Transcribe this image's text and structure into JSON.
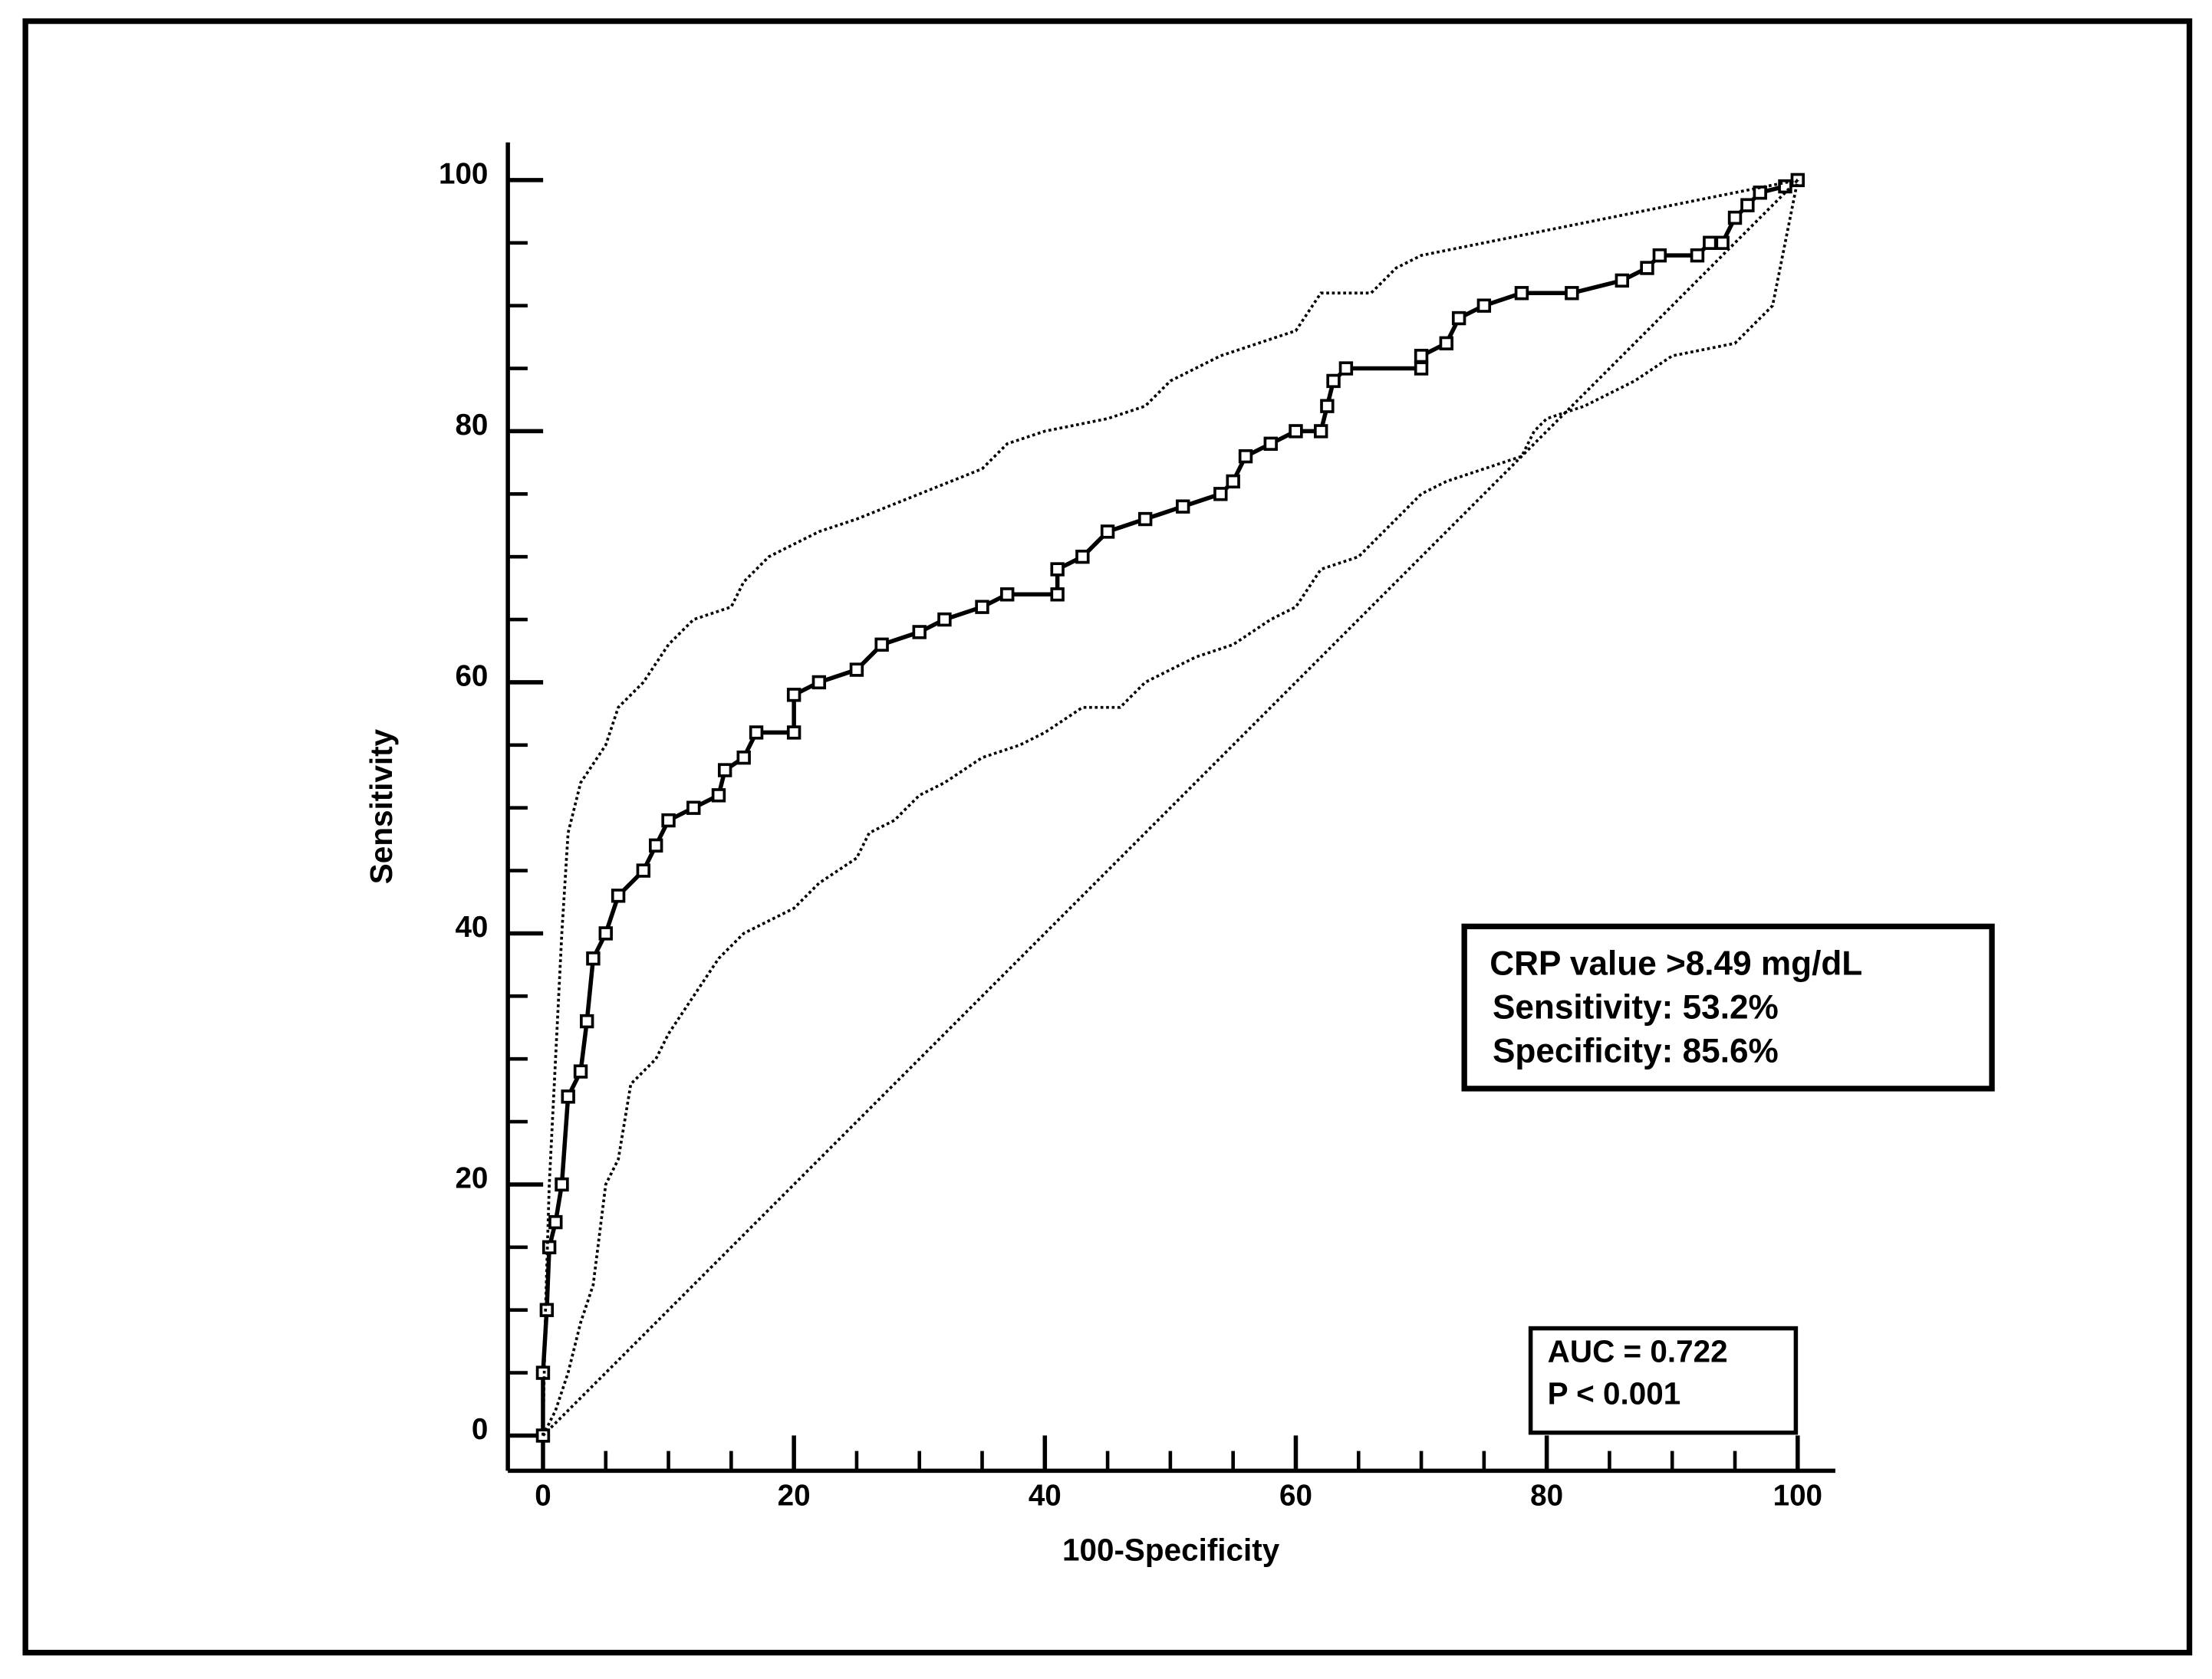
{
  "chart_data": {
    "type": "line",
    "xlabel": "100-Specificity",
    "ylabel": "Sensitivity",
    "xlim": [
      -2.8,
      103
    ],
    "ylim": [
      -2.8,
      103
    ],
    "xticks": [
      0,
      20,
      40,
      60,
      80,
      100
    ],
    "yticks": [
      0,
      20,
      40,
      60,
      80,
      100
    ],
    "xminorticks": [
      5,
      10,
      15,
      25,
      30,
      35,
      45,
      50,
      55,
      65,
      70,
      75,
      85,
      90,
      95
    ],
    "yminorticks": [
      5,
      10,
      15,
      25,
      30,
      35,
      45,
      50,
      55,
      65,
      70,
      75,
      85,
      90,
      95
    ],
    "annotations": [
      {
        "lines": [
          "CRP value >8.49 mg/dL",
          "Sensitivity: 53.2%",
          "Specificity: 85.6%"
        ]
      },
      {
        "lines": [
          "AUC = 0.722",
          "P < 0.001"
        ]
      }
    ],
    "series": [
      {
        "color": "#000000",
        "marker": "square",
        "dash": "solid",
        "x": [
          0,
          0,
          0.3,
          0.5,
          1,
          1.5,
          2,
          3,
          3.5,
          4,
          5,
          6,
          8,
          9,
          10,
          12,
          14,
          14.5,
          16,
          17,
          20,
          20,
          22,
          25,
          27,
          30,
          32,
          35,
          37,
          41,
          41,
          43,
          45,
          48,
          51,
          54,
          55,
          56,
          58,
          60,
          62,
          62.5,
          63,
          64,
          70,
          70,
          72,
          73,
          75,
          78,
          82,
          86,
          88,
          89,
          92,
          93,
          94,
          95,
          96,
          97,
          99,
          100
        ],
        "values": [
          0,
          5,
          10,
          15,
          17,
          20,
          27,
          29,
          33,
          38,
          40,
          43,
          45,
          47,
          49,
          50,
          51,
          53,
          54,
          56,
          56,
          59,
          60,
          61,
          63,
          64,
          65,
          66,
          67,
          67,
          69,
          70,
          72,
          73,
          74,
          75,
          76,
          78,
          79,
          80,
          80,
          82,
          84,
          85,
          85,
          86,
          87,
          89,
          90,
          91,
          91,
          92,
          93,
          94,
          94,
          95,
          95,
          97,
          98,
          99,
          99.5,
          100
        ]
      },
      {
        "color": "#000000",
        "marker": "none",
        "dash": "dotted",
        "x": [
          0,
          0.2,
          0.5,
          1,
          1.5,
          2,
          3,
          5,
          6,
          8,
          10,
          12,
          15,
          16,
          18,
          22,
          25,
          30,
          35,
          37,
          40,
          45,
          48,
          50,
          52,
          54,
          60,
          62,
          66,
          68,
          70,
          75,
          80,
          85,
          90,
          95,
          100
        ],
        "values": [
          0,
          10,
          20,
          30,
          40,
          48,
          52,
          55,
          58,
          60,
          63,
          65,
          66,
          68,
          70,
          72,
          73,
          75,
          77,
          79,
          80,
          81,
          82,
          84,
          85,
          86,
          88,
          91,
          91,
          93,
          94,
          95,
          96,
          97,
          98,
          99,
          100
        ]
      },
      {
        "color": "#000000",
        "marker": "none",
        "dash": "dotted",
        "x": [
          0,
          1,
          2,
          3,
          4,
          5,
          6,
          7,
          9,
          10,
          12,
          14,
          16,
          18,
          20,
          22,
          25,
          26,
          28,
          30,
          32,
          35,
          38,
          40,
          43,
          46,
          48,
          50,
          52,
          55,
          58,
          60,
          62,
          65,
          68,
          70,
          72,
          78,
          79,
          80,
          83,
          87,
          90,
          95,
          98,
          100
        ],
        "values": [
          0,
          2,
          5,
          9,
          12,
          20,
          22,
          28,
          30,
          32,
          35,
          38,
          40,
          41,
          42,
          44,
          46,
          48,
          49,
          51,
          52,
          54,
          55,
          56,
          58,
          58,
          60,
          61,
          62,
          63,
          65,
          66,
          69,
          70,
          73,
          75,
          76,
          78,
          80,
          81,
          82,
          84,
          86,
          87,
          90,
          100
        ]
      },
      {
        "color": "#000000",
        "marker": "none",
        "dash": "dotted",
        "x": [
          0,
          100
        ],
        "values": [
          0,
          100
        ]
      }
    ]
  }
}
